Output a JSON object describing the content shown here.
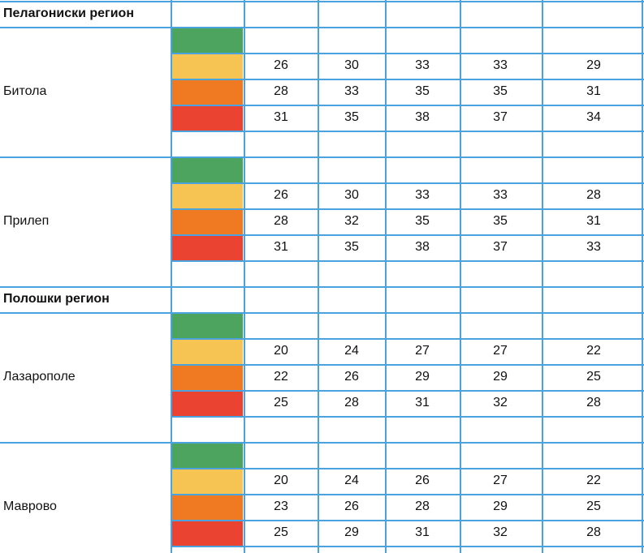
{
  "colors": {
    "green": "#4ca45f",
    "yellow": "#f5c453",
    "orange": "#f07a22",
    "red": "#ea4331"
  },
  "blocks": [
    {
      "type": "region",
      "title": "Пелагониски регион"
    },
    {
      "type": "city",
      "name": "Битола",
      "rows": [
        [
          "26",
          "30",
          "33",
          "33",
          "29"
        ],
        [
          "28",
          "33",
          "35",
          "35",
          "31"
        ],
        [
          "31",
          "35",
          "38",
          "37",
          "34"
        ]
      ]
    },
    {
      "type": "city",
      "name": "Прилеп",
      "rows": [
        [
          "26",
          "30",
          "33",
          "33",
          "28"
        ],
        [
          "28",
          "32",
          "35",
          "35",
          "31"
        ],
        [
          "31",
          "35",
          "38",
          "37",
          "33"
        ]
      ]
    },
    {
      "type": "region",
      "title": "Полошки регион"
    },
    {
      "type": "city",
      "name": "Лазарополе",
      "rows": [
        [
          "20",
          "24",
          "27",
          "27",
          "22"
        ],
        [
          "22",
          "26",
          "29",
          "29",
          "25"
        ],
        [
          "25",
          "28",
          "31",
          "32",
          "28"
        ]
      ]
    },
    {
      "type": "city",
      "name": "Маврово",
      "rows": [
        [
          "20",
          "24",
          "26",
          "27",
          "22"
        ],
        [
          "23",
          "26",
          "28",
          "29",
          "25"
        ],
        [
          "25",
          "29",
          "31",
          "32",
          "28"
        ]
      ]
    }
  ]
}
